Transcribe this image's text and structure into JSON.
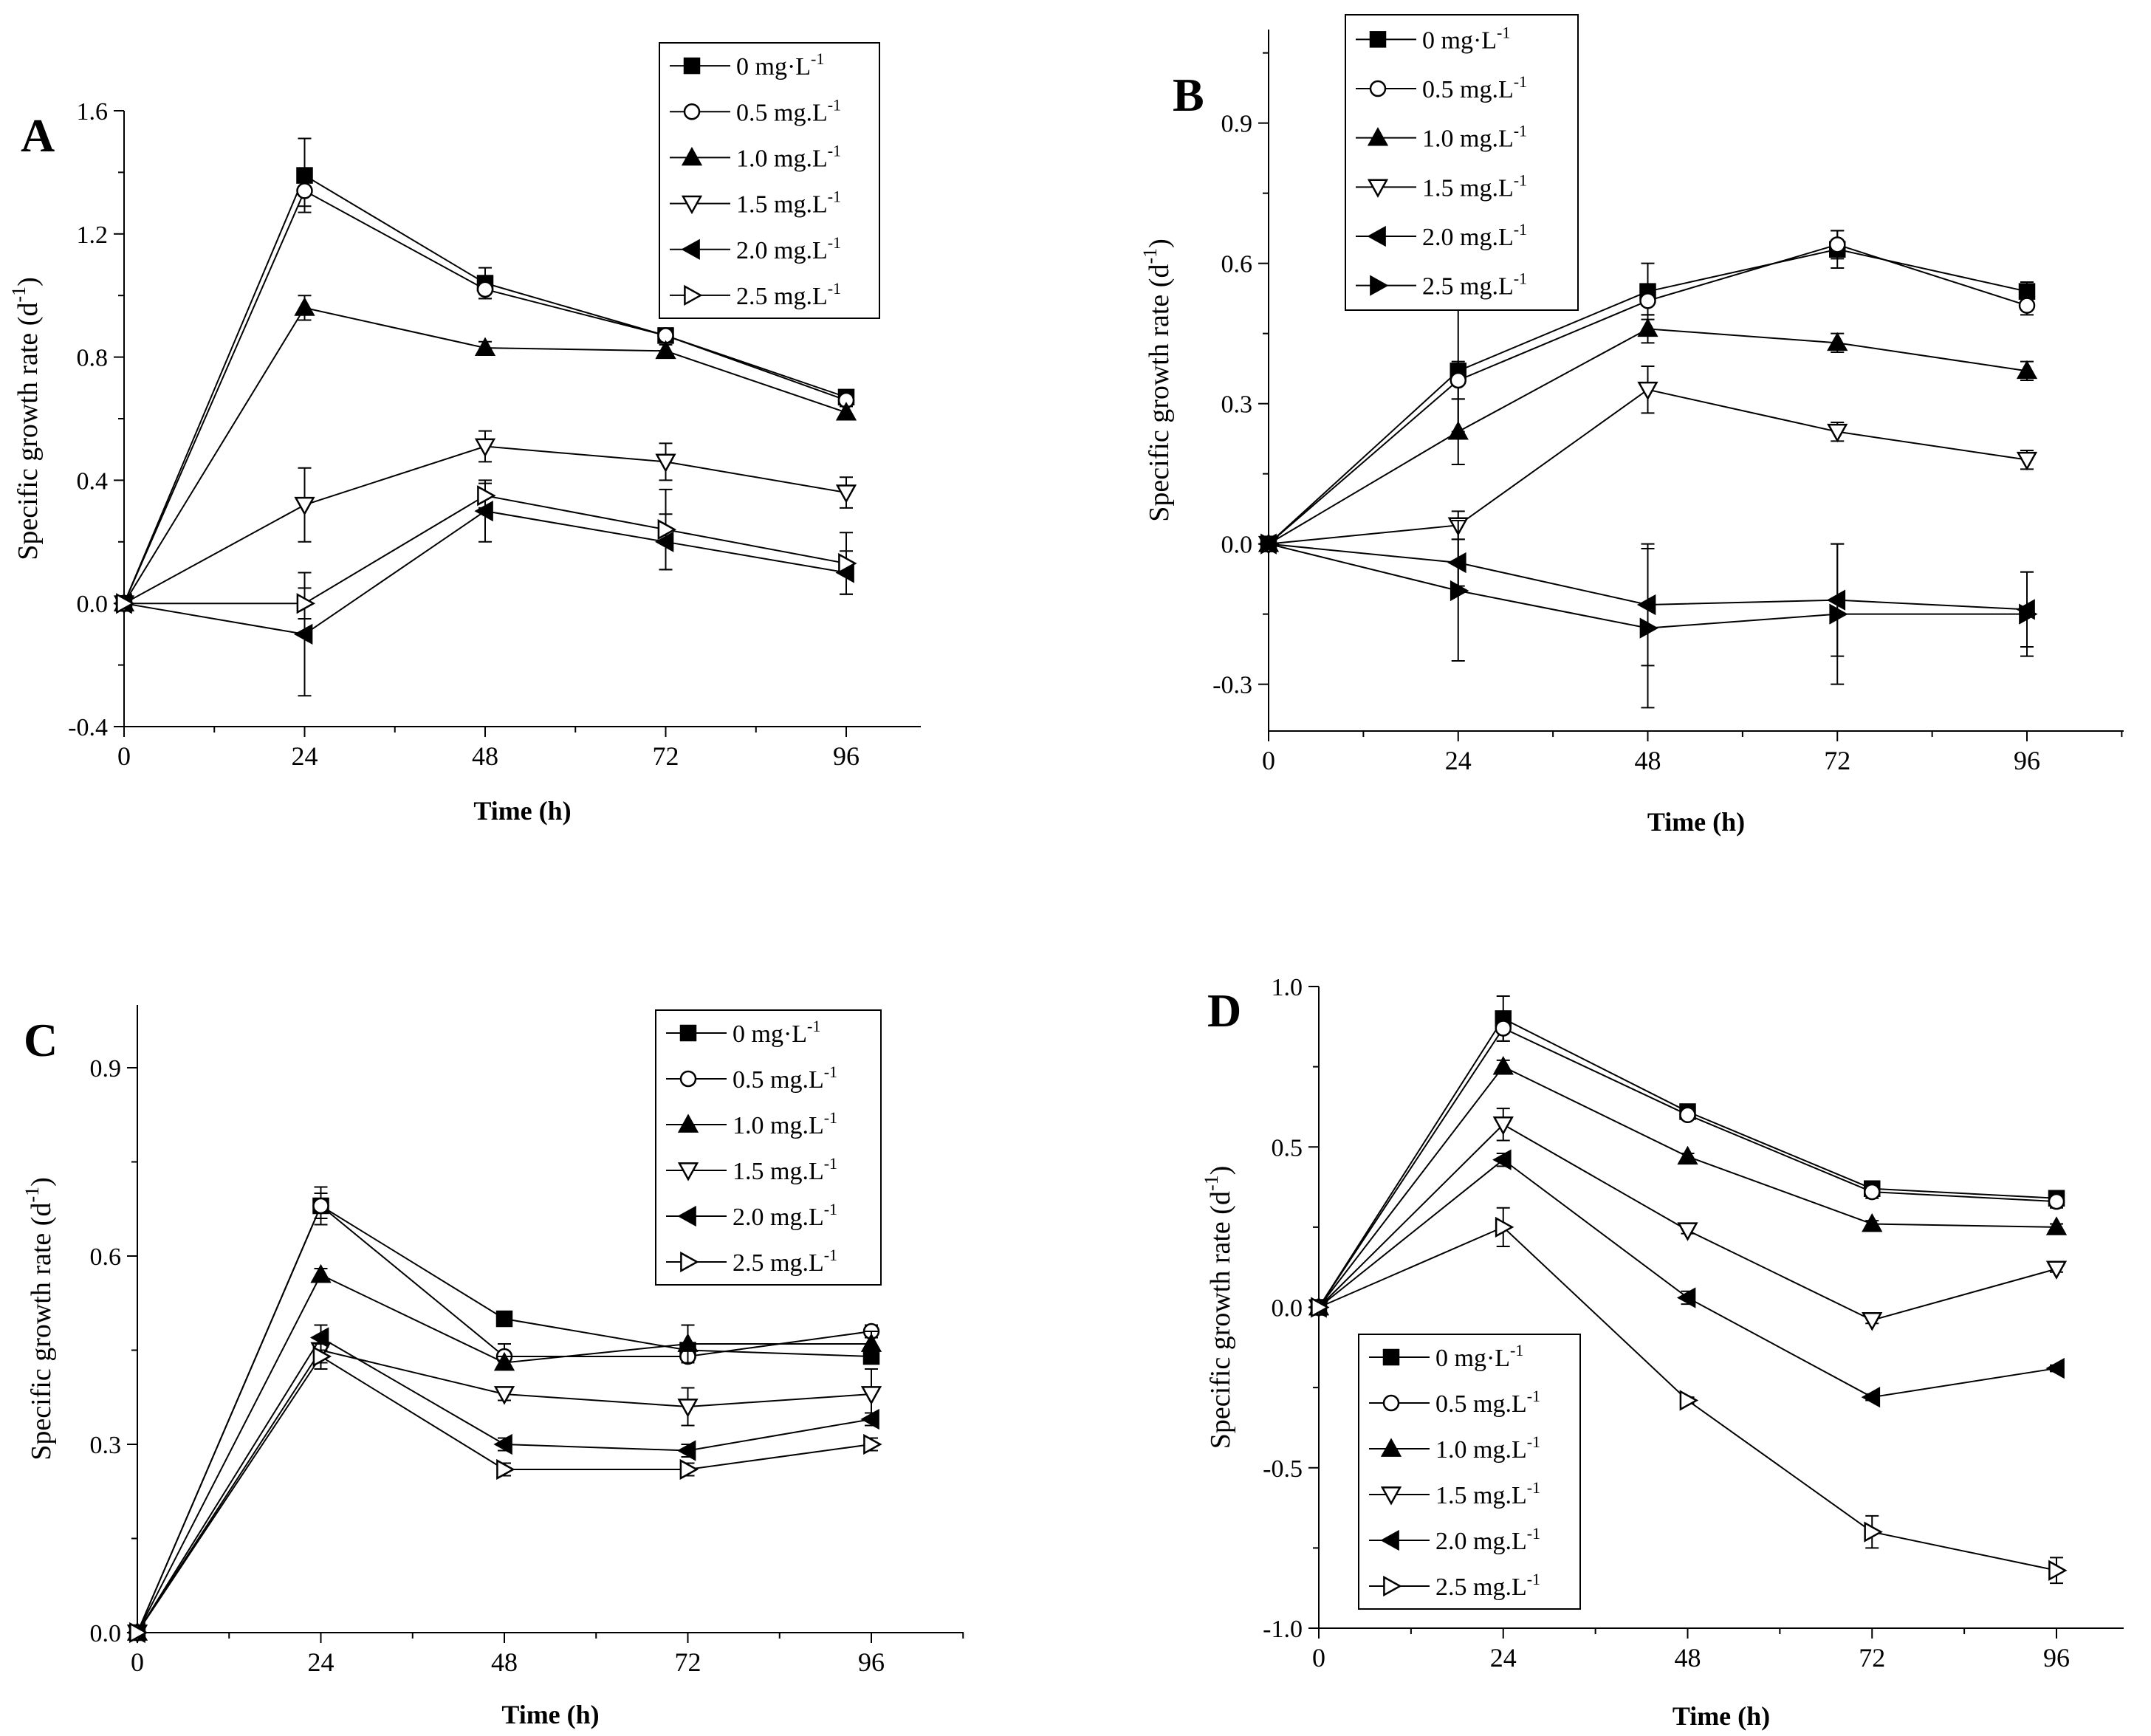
{
  "figure": {
    "panels_order": [
      "A",
      "B",
      "C",
      "D"
    ]
  },
  "chart_data": [
    {
      "panel": "A",
      "type": "line",
      "xlabel": "Time (h)",
      "ylabel": "Specific growth rate (d",
      "ylabel_sup": "-1",
      "ylabel_close": ")",
      "x": [
        0,
        24,
        48,
        72,
        96
      ],
      "x_ticks": [
        0,
        24,
        48,
        72,
        96
      ],
      "xlim": [
        0,
        108
      ],
      "ylim": [
        -0.4,
        1.6
      ],
      "y_ticks": [
        -0.4,
        0.0,
        0.4,
        0.8,
        1.2,
        1.6
      ],
      "y_tick_labels": [
        "-0.4",
        "0.0",
        "0.4",
        "0.8",
        "1.2",
        "1.6"
      ],
      "legend_position": "top-right",
      "series": [
        {
          "name": "0    mg·L",
          "sup": "-1",
          "marker": "square-filled",
          "values": [
            0,
            1.39,
            1.04,
            0.87,
            0.67
          ],
          "errors": [
            0,
            0.12,
            0.05,
            0.02,
            0.02
          ]
        },
        {
          "name": "0.5 mg.L",
          "sup": "-1",
          "marker": "circle-open",
          "values": [
            0,
            1.34,
            1.02,
            0.87,
            0.66
          ],
          "errors": [
            0,
            0.05,
            0.03,
            0.02,
            0.02
          ]
        },
        {
          "name": "1.0 mg.L",
          "sup": "-1",
          "marker": "triangle-up-filled",
          "values": [
            0,
            0.96,
            0.83,
            0.82,
            0.62
          ],
          "errors": [
            0,
            0.04,
            0.02,
            0.02,
            0.02
          ]
        },
        {
          "name": "1.5 mg.L",
          "sup": "-1",
          "marker": "triangle-down-open",
          "values": [
            0,
            0.32,
            0.51,
            0.46,
            0.36
          ],
          "errors": [
            0,
            0.12,
            0.05,
            0.06,
            0.05
          ]
        },
        {
          "name": "2.0 mg.L",
          "sup": "-1",
          "marker": "triangle-left-filled",
          "values": [
            0,
            -0.1,
            0.3,
            0.2,
            0.1
          ],
          "errors": [
            0,
            0.2,
            0.1,
            0.09,
            0.07
          ]
        },
        {
          "name": "2.5 mg.L",
          "sup": "-1",
          "marker": "triangle-right-open",
          "values": [
            0,
            0.0,
            0.35,
            0.24,
            0.13
          ],
          "errors": [
            0,
            0.05,
            0.04,
            0.13,
            0.1
          ]
        }
      ]
    },
    {
      "panel": "B",
      "type": "line",
      "xlabel": "Time (h)",
      "ylabel": "Specific growth rate (d",
      "ylabel_sup": "-1",
      "ylabel_close": ")",
      "x": [
        0,
        24,
        48,
        72,
        96
      ],
      "x_ticks": [
        0,
        24,
        48,
        72,
        96
      ],
      "xlim": [
        0,
        108
      ],
      "ylim": [
        -0.4,
        1.1
      ],
      "y_ticks": [
        -0.3,
        0.0,
        0.3,
        0.6,
        0.9
      ],
      "y_tick_labels": [
        "-0.3",
        "0.0",
        "0.3",
        "0.6",
        "0.9"
      ],
      "legend_position": "top-left",
      "series": [
        {
          "name": "0     mg·L",
          "sup": "-1",
          "marker": "square-filled",
          "values": [
            0,
            0.37,
            0.54,
            0.63,
            0.54
          ],
          "errors": [
            0,
            0.13,
            0.06,
            0.04,
            0.02
          ]
        },
        {
          "name": "0.5 mg.L",
          "sup": "-1",
          "marker": "circle-open",
          "values": [
            0,
            0.35,
            0.52,
            0.64,
            0.51
          ],
          "errors": [
            0,
            0.04,
            0.03,
            0.03,
            0.02
          ]
        },
        {
          "name": "1.0 mg.L",
          "sup": "-1",
          "marker": "triangle-up-filled",
          "values": [
            0,
            0.24,
            0.46,
            0.43,
            0.37
          ],
          "errors": [
            0,
            0.07,
            0.03,
            0.02,
            0.02
          ]
        },
        {
          "name": "1.5 mg.L",
          "sup": "-1",
          "marker": "triangle-down-open",
          "values": [
            0,
            0.04,
            0.33,
            0.24,
            0.18
          ],
          "errors": [
            0,
            0.03,
            0.05,
            0.02,
            0.02
          ]
        },
        {
          "name": "2.0 mg.L",
          "sup": "-1",
          "marker": "triangle-left-filled",
          "values": [
            0,
            -0.04,
            -0.13,
            -0.12,
            -0.14
          ],
          "errors": [
            0,
            0.05,
            0.13,
            0.12,
            0.08
          ]
        },
        {
          "name": "2.5 mg.L",
          "sup": "-1",
          "marker": "triangle-right-filled",
          "values": [
            0,
            -0.1,
            -0.18,
            -0.15,
            -0.15
          ],
          "errors": [
            0,
            0.15,
            0.17,
            0.15,
            0.09
          ]
        }
      ]
    },
    {
      "panel": "C",
      "type": "line",
      "xlabel": "Time (h)",
      "ylabel": "Specific growth rate (d",
      "ylabel_sup": "-1",
      "ylabel_close": ")",
      "x": [
        0,
        24,
        48,
        72,
        96
      ],
      "x_ticks": [
        0,
        24,
        48,
        72,
        96
      ],
      "xlim": [
        0,
        108
      ],
      "ylim": [
        0.0,
        1.0
      ],
      "y_ticks": [
        0.0,
        0.3,
        0.6,
        0.9
      ],
      "y_tick_labels": [
        "0.0",
        "0.3",
        "0.6",
        "0.9"
      ],
      "legend_position": "top-right",
      "series": [
        {
          "name": "0     mg·L",
          "sup": "-1",
          "marker": "square-filled",
          "values": [
            0,
            0.68,
            0.5,
            0.45,
            0.44
          ],
          "errors": [
            0,
            0.02,
            0.01,
            0.01,
            0.01
          ]
        },
        {
          "name": "0.5 mg.L",
          "sup": "-1",
          "marker": "circle-open",
          "values": [
            0,
            0.68,
            0.44,
            0.44,
            0.48
          ],
          "errors": [
            0,
            0.03,
            0.02,
            0.01,
            0.01
          ]
        },
        {
          "name": "1.0 mg.L",
          "sup": "-1",
          "marker": "triangle-up-filled",
          "values": [
            0,
            0.57,
            0.43,
            0.46,
            0.46
          ],
          "errors": [
            0,
            0.01,
            0.01,
            0.03,
            0.02
          ]
        },
        {
          "name": "1.5 mg.L",
          "sup": "-1",
          "marker": "triangle-down-open",
          "values": [
            0,
            0.45,
            0.38,
            0.36,
            0.38
          ],
          "errors": [
            0,
            0.02,
            0.01,
            0.03,
            0.04
          ]
        },
        {
          "name": "2.0 mg.L",
          "sup": "-1",
          "marker": "triangle-left-filled",
          "values": [
            0,
            0.47,
            0.3,
            0.29,
            0.34
          ],
          "errors": [
            0,
            0.02,
            0.01,
            0.01,
            0.01
          ]
        },
        {
          "name": "2.5 mg.L",
          "sup": "-1",
          "marker": "triangle-right-open",
          "values": [
            0,
            0.44,
            0.26,
            0.26,
            0.3
          ],
          "errors": [
            0,
            0.02,
            0.01,
            0.01,
            0.01
          ]
        }
      ]
    },
    {
      "panel": "D",
      "type": "line",
      "xlabel": "Time (h)",
      "ylabel": "Specific growth rate (d",
      "ylabel_sup": "-1",
      "ylabel_close": ")",
      "x": [
        0,
        24,
        48,
        72,
        96
      ],
      "x_ticks": [
        0,
        24,
        48,
        72,
        96
      ],
      "xlim": [
        0,
        108
      ],
      "ylim": [
        -1.0,
        1.0
      ],
      "y_ticks": [
        -1.0,
        -0.5,
        0.0,
        0.5,
        1.0
      ],
      "y_tick_labels": [
        "-1.0",
        "-0.5",
        "0.0",
        "0.5",
        "1.0"
      ],
      "legend_position": "bottom-left",
      "series": [
        {
          "name": "0     mg·L",
          "sup": "-1",
          "marker": "square-filled",
          "values": [
            0,
            0.9,
            0.61,
            0.37,
            0.34
          ],
          "errors": [
            0,
            0.07,
            0.01,
            0.01,
            0.01
          ]
        },
        {
          "name": "0.5 mg.L",
          "sup": "-1",
          "marker": "circle-open",
          "values": [
            0,
            0.87,
            0.6,
            0.36,
            0.33
          ],
          "errors": [
            0,
            0.04,
            0.01,
            0.02,
            0.02
          ]
        },
        {
          "name": "1.0 mg.L",
          "sup": "-1",
          "marker": "triangle-up-filled",
          "values": [
            0,
            0.75,
            0.47,
            0.26,
            0.25
          ],
          "errors": [
            0,
            0.02,
            0.01,
            0.01,
            0.01
          ]
        },
        {
          "name": "1.5 mg.L",
          "sup": "-1",
          "marker": "triangle-down-open",
          "values": [
            0,
            0.57,
            0.24,
            -0.04,
            0.12
          ],
          "errors": [
            0,
            0.05,
            0.01,
            0.01,
            0.01
          ]
        },
        {
          "name": "2.0 mg.L",
          "sup": "-1",
          "marker": "triangle-left-filled",
          "values": [
            0,
            0.46,
            0.03,
            -0.28,
            -0.19
          ],
          "errors": [
            0,
            0.02,
            0.02,
            0.01,
            0.01
          ]
        },
        {
          "name": "2.5 mg.L",
          "sup": "-1",
          "marker": "triangle-right-open",
          "values": [
            0,
            0.25,
            -0.29,
            -0.7,
            -0.82
          ],
          "errors": [
            0,
            0.06,
            0.01,
            0.05,
            0.04
          ]
        }
      ]
    }
  ]
}
